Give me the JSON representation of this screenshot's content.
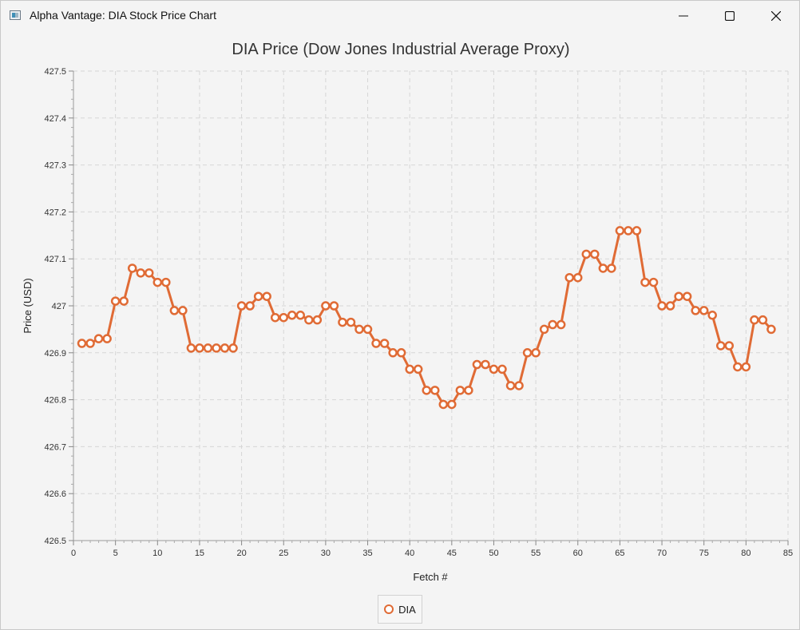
{
  "window": {
    "title": "Alpha Vantage: DIA Stock Price Chart",
    "icon": "application-window-icon",
    "controls": [
      "minimize-icon",
      "maximize-icon",
      "close-icon"
    ]
  },
  "chart_data": {
    "type": "line",
    "title": "DIA Price (Dow Jones Industrial Average Proxy)",
    "xlabel": "Fetch #",
    "ylabel": "Price (USD)",
    "xlim": [
      0,
      85
    ],
    "ylim": [
      426.5,
      427.5
    ],
    "x_ticks": [
      "0",
      "5",
      "10",
      "15",
      "20",
      "25",
      "30",
      "35",
      "40",
      "45",
      "50",
      "55",
      "60",
      "65",
      "70",
      "75",
      "80",
      "85"
    ],
    "y_ticks": [
      "426.5",
      "426.6",
      "426.7",
      "426.8",
      "426.9",
      "427",
      "427.1",
      "427.2",
      "427.3",
      "427.4",
      "427.5"
    ],
    "grid": true,
    "legend": "bottom-center",
    "series": [
      {
        "name": "DIA",
        "color": "#e06b35",
        "x": [
          1,
          2,
          3,
          4,
          5,
          6,
          7,
          8,
          9,
          10,
          11,
          12,
          13,
          14,
          15,
          16,
          17,
          18,
          19,
          20,
          21,
          22,
          23,
          24,
          25,
          26,
          27,
          28,
          29,
          30,
          31,
          32,
          33,
          34,
          35,
          36,
          37,
          38,
          39,
          40,
          41,
          42,
          43,
          44,
          45,
          46,
          47,
          48,
          49,
          50,
          51,
          52,
          53,
          54,
          55,
          56,
          57,
          58,
          59,
          60,
          61,
          62,
          63,
          64,
          65,
          66,
          67,
          68,
          69,
          70,
          71,
          72,
          73,
          74,
          75,
          76,
          77,
          78,
          79,
          80,
          81,
          82,
          83
        ],
        "values": [
          426.92,
          426.92,
          426.93,
          426.93,
          427.01,
          427.01,
          427.08,
          427.07,
          427.07,
          427.05,
          427.05,
          426.99,
          426.99,
          426.91,
          426.91,
          426.91,
          426.91,
          426.91,
          426.91,
          427.0,
          427.0,
          427.02,
          427.02,
          426.975,
          426.975,
          426.98,
          426.98,
          426.97,
          426.97,
          427.0,
          427.0,
          426.965,
          426.965,
          426.95,
          426.95,
          426.92,
          426.92,
          426.9,
          426.9,
          426.865,
          426.865,
          426.82,
          426.82,
          426.79,
          426.79,
          426.82,
          426.82,
          426.875,
          426.875,
          426.865,
          426.865,
          426.83,
          426.83,
          426.9,
          426.9,
          426.95,
          426.96,
          426.96,
          427.06,
          427.06,
          427.11,
          427.11,
          427.08,
          427.08,
          427.16,
          427.16,
          427.16,
          427.05,
          427.05,
          427.0,
          427.0,
          427.02,
          427.02,
          426.99,
          426.99,
          426.98,
          426.915,
          426.915,
          426.87,
          426.87,
          426.97,
          426.97,
          426.95
        ]
      }
    ]
  }
}
